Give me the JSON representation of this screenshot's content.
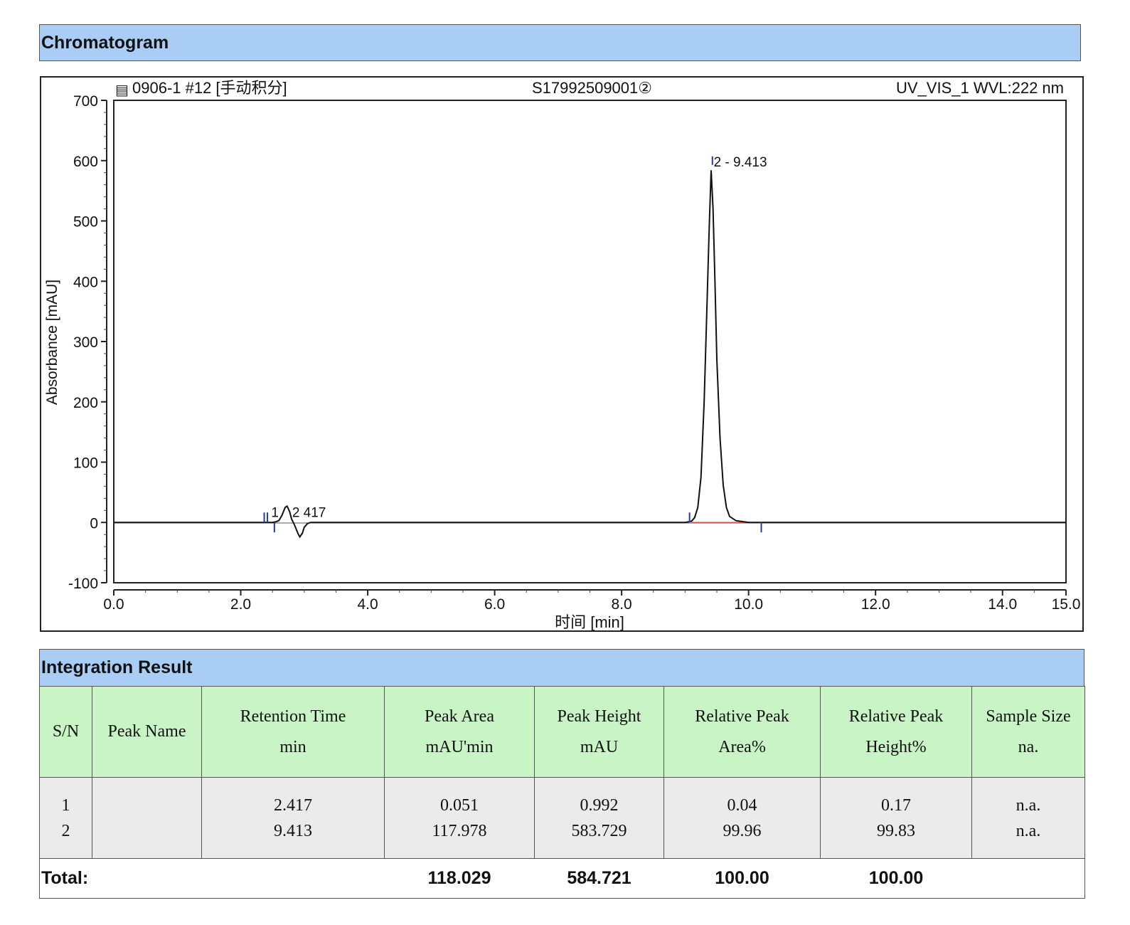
{
  "chromatogram_header": "Chromatogram",
  "integration_header": "Integration Result",
  "chart_data": {
    "type": "line",
    "header_left": "0906-1 #12 [手动积分]",
    "header_center": "S17992509001②",
    "header_right": "UV_VIS_1 WVL:222 nm",
    "ylabel": "Absorbance [mAU]",
    "xlabel": "时间 [min]",
    "xlim": [
      0,
      15
    ],
    "ylim": [
      -100,
      700
    ],
    "x_ticks": [
      "0.0",
      "2.0",
      "4.0",
      "6.0",
      "8.0",
      "10.0",
      "12.0",
      "14.0",
      "15.0"
    ],
    "x_tick_values": [
      0,
      2,
      4,
      6,
      8,
      10,
      12,
      14,
      15
    ],
    "y_ticks": [
      "700",
      "600",
      "500",
      "400",
      "300",
      "200",
      "100",
      "0",
      "-100"
    ],
    "y_tick_values": [
      700,
      600,
      500,
      400,
      300,
      200,
      100,
      0,
      -100
    ],
    "series": [
      {
        "x": [
          0,
          2.5,
          2.55,
          2.6,
          2.65,
          2.7,
          2.73,
          2.77,
          2.8,
          2.85,
          2.9,
          2.93,
          2.97,
          3.0,
          3.05,
          3.1,
          3.2,
          9.0,
          9.1,
          9.15,
          9.2,
          9.25,
          9.3,
          9.35,
          9.38,
          9.41,
          9.44,
          9.47,
          9.5,
          9.55,
          9.6,
          9.65,
          9.7,
          9.8,
          10.0,
          15.0
        ],
        "y": [
          0,
          0,
          1,
          3,
          12,
          25,
          27,
          18,
          6,
          -5,
          -18,
          -24,
          -18,
          -8,
          -2,
          0,
          0,
          0,
          2,
          8,
          25,
          75,
          200,
          380,
          490,
          584,
          520,
          400,
          270,
          140,
          62,
          25,
          10,
          3,
          0,
          0
        ]
      }
    ],
    "baseline": {
      "x": [
        9.1,
        10.2
      ],
      "y": [
        0,
        0
      ],
      "color": "#d9534f"
    },
    "peak_labels": [
      {
        "text": "1",
        "x": 2.48,
        "y": 9
      },
      {
        "text": "2 417",
        "x": 2.81,
        "y": 9
      },
      {
        "text": "2 - 9.413",
        "x": 9.45,
        "y": 590
      }
    ],
    "markers": [
      {
        "x": 2.37,
        "dir": "up"
      },
      {
        "x": 2.42,
        "dir": "up"
      },
      {
        "x": 2.53,
        "dir": "down"
      },
      {
        "x": 9.07,
        "dir": "up"
      },
      {
        "x": 10.2,
        "dir": "down"
      },
      {
        "x": 9.43,
        "dir": "peak"
      }
    ]
  },
  "table": {
    "headers": [
      {
        "l1": "S/N",
        "l2": ""
      },
      {
        "l1": "Peak Name",
        "l2": ""
      },
      {
        "l1": "Retention Time",
        "l2": "min"
      },
      {
        "l1": "Peak Area",
        "l2": "mAU'min"
      },
      {
        "l1": "Peak Height",
        "l2": "mAU"
      },
      {
        "l1": "Relative Peak",
        "l2": "Area%"
      },
      {
        "l1": "Relative Peak",
        "l2": "Height%"
      },
      {
        "l1": "Sample Size",
        "l2": "na."
      }
    ],
    "rows": [
      {
        "sn": "1",
        "name": "",
        "rt": "2.417",
        "area": "0.051",
        "height": "0.992",
        "rel_area": "0.04",
        "rel_height": "0.17",
        "sample": "n.a."
      },
      {
        "sn": "2",
        "name": "",
        "rt": "9.413",
        "area": "117.978",
        "height": "583.729",
        "rel_area": "99.96",
        "rel_height": "99.83",
        "sample": "n.a."
      }
    ],
    "total": {
      "label": "Total:",
      "area": "118.029",
      "height": "584.721",
      "rel_area": "100.00",
      "rel_height": "100.00"
    }
  }
}
